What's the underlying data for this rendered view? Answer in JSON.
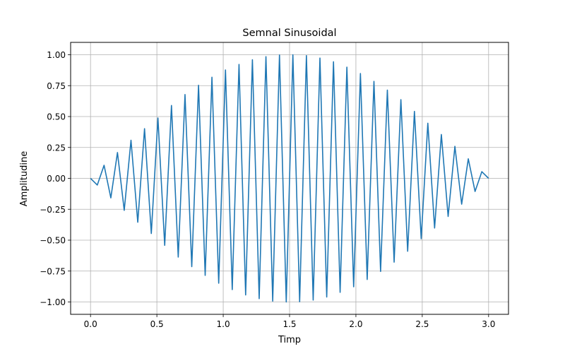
{
  "chart_data": {
    "type": "line",
    "title": "Semnal Sinusoidal",
    "xlabel": "Timp",
    "ylabel": "Amplitudine",
    "xlim": [
      -0.15,
      3.15
    ],
    "ylim": [
      -1.1,
      1.1
    ],
    "grid": true,
    "legend": "none",
    "line_color": "#1f77b4",
    "grid_color": "#b0b0b0",
    "xticks": [
      {
        "value": 0.0,
        "label": "0.0"
      },
      {
        "value": 0.5,
        "label": "0.5"
      },
      {
        "value": 1.0,
        "label": "1.0"
      },
      {
        "value": 1.5,
        "label": "1.5"
      },
      {
        "value": 2.0,
        "label": "2.0"
      },
      {
        "value": 2.5,
        "label": "2.5"
      },
      {
        "value": 3.0,
        "label": "3.0"
      }
    ],
    "yticks": [
      {
        "value": -1.0,
        "label": "−1.00"
      },
      {
        "value": -0.75,
        "label": "−0.75"
      },
      {
        "value": -0.5,
        "label": "−0.50"
      },
      {
        "value": -0.25,
        "label": "−0.25"
      },
      {
        "value": 0.0,
        "label": "0.00"
      },
      {
        "value": 0.25,
        "label": "0.25"
      },
      {
        "value": 0.5,
        "label": "0.50"
      },
      {
        "value": 0.75,
        "label": "0.75"
      },
      {
        "value": 1.0,
        "label": "1.00"
      }
    ],
    "series": [
      {
        "x": [
          0.0,
          0.051,
          0.102,
          0.153,
          0.203,
          0.254,
          0.305,
          0.356,
          0.407,
          0.458,
          0.508,
          0.559,
          0.61,
          0.661,
          0.712,
          0.763,
          0.814,
          0.864,
          0.915,
          0.966,
          1.017,
          1.068,
          1.119,
          1.169,
          1.22,
          1.271,
          1.322,
          1.373,
          1.424,
          1.475,
          1.525,
          1.576,
          1.627,
          1.678,
          1.729,
          1.78,
          1.831,
          1.881,
          1.932,
          1.983,
          2.034,
          2.085,
          2.136,
          2.186,
          2.237,
          2.288,
          2.339,
          2.39,
          2.441,
          2.492,
          2.542,
          2.593,
          2.644,
          2.695,
          2.746,
          2.797,
          2.847,
          2.898,
          2.949,
          3.0
        ],
        "y": [
          0.0,
          -0.054,
          0.106,
          -0.158,
          0.209,
          -0.259,
          0.308,
          -0.355,
          0.402,
          -0.446,
          0.488,
          -0.542,
          0.59,
          -0.637,
          0.678,
          -0.714,
          0.753,
          -0.785,
          0.818,
          -0.848,
          0.877,
          -0.9,
          0.922,
          -0.943,
          0.96,
          -0.973,
          0.985,
          -0.993,
          0.998,
          -1.0,
          1.0,
          -0.998,
          0.993,
          -0.985,
          0.973,
          -0.96,
          0.943,
          -0.922,
          0.9,
          -0.877,
          0.848,
          -0.818,
          0.785,
          -0.753,
          0.714,
          -0.678,
          0.637,
          -0.59,
          0.542,
          -0.488,
          0.446,
          -0.402,
          0.355,
          -0.308,
          0.259,
          -0.209,
          0.158,
          -0.106,
          0.054,
          0.0
        ]
      }
    ]
  }
}
